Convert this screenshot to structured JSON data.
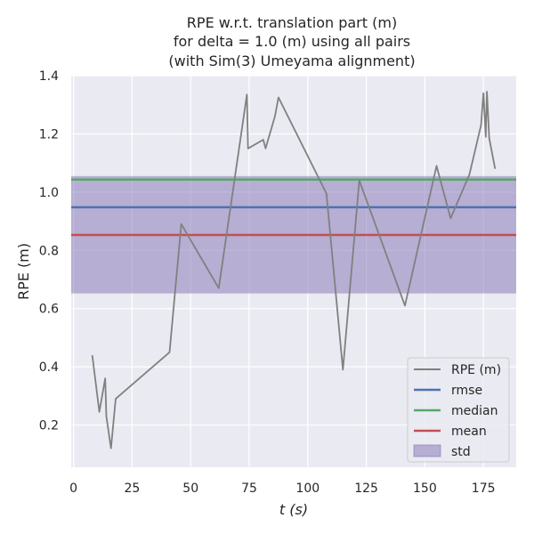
{
  "chart_data": {
    "type": "line",
    "title_lines": [
      "RPE w.r.t. translation part (m)",
      "for delta = 1.0 (m) using all pairs",
      "(with Sim(3) Umeyama alignment)"
    ],
    "xlabel": "t (s)",
    "ylabel": "RPE (m)",
    "xlim": [
      -1,
      189
    ],
    "ylim": [
      0.055,
      1.4
    ],
    "xticks": [
      0,
      25,
      50,
      75,
      100,
      125,
      150,
      175
    ],
    "yticks": [
      0.2,
      0.4,
      0.6,
      0.8,
      1.0,
      1.2,
      1.4
    ],
    "ytick_labels": [
      "0.2",
      "0.4",
      "0.6",
      "0.8",
      "1.0",
      "1.2",
      "1.4"
    ],
    "grid": true,
    "legend_position": "lower-right",
    "series": [
      {
        "name": "RPE (m)",
        "color": "#808080",
        "x": [
          8,
          11,
          13.5,
          14,
          16,
          18,
          41,
          46,
          62,
          74,
          74.5,
          81,
          82,
          86,
          87.5,
          108,
          115,
          122,
          141.5,
          155,
          161,
          169,
          174,
          175,
          176,
          176.5,
          177.5,
          180
        ],
        "y": [
          0.44,
          0.245,
          0.36,
          0.23,
          0.12,
          0.29,
          0.45,
          0.89,
          0.67,
          1.335,
          1.15,
          1.18,
          1.15,
          1.26,
          1.325,
          0.995,
          0.39,
          1.04,
          0.61,
          1.09,
          0.91,
          1.06,
          1.23,
          1.34,
          1.19,
          1.345,
          1.185,
          1.08
        ]
      }
    ],
    "stats": [
      {
        "name": "rmse",
        "value": 0.948,
        "color": "#4c72b0"
      },
      {
        "name": "median",
        "value": 1.043,
        "color": "#55a868"
      },
      {
        "name": "mean",
        "value": 0.853,
        "color": "#c44e52"
      }
    ],
    "std_band": {
      "name": "std",
      "lower": 0.652,
      "upper": 1.055,
      "color": "#8172b3"
    },
    "legend_entries": [
      "RPE (m)",
      "rmse",
      "median",
      "mean",
      "std"
    ]
  }
}
